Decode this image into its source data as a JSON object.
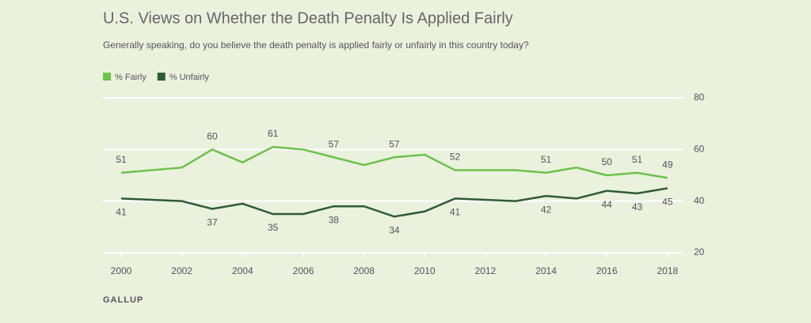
{
  "chart_data": {
    "type": "line",
    "title": "U.S. Views on Whether the Death Penalty Is Applied Fairly",
    "subtitle": "Generally speaking, do you believe the death penalty is applied fairly or unfairly in this country today?",
    "source": "GALLUP",
    "x": [
      2000,
      2002,
      2003,
      2004,
      2005,
      2006,
      2007,
      2008,
      2009,
      2010,
      2011,
      2013,
      2014,
      2015,
      2016,
      2017,
      2018
    ],
    "series": [
      {
        "name": "% Fairly",
        "color": "#6cc24a",
        "values": [
          51,
          53,
          60,
          55,
          61,
          60,
          57,
          54,
          57,
          58,
          52,
          52,
          51,
          53,
          50,
          51,
          49
        ],
        "value_labels": [
          "51",
          null,
          "60",
          null,
          "61",
          null,
          "57",
          null,
          "57",
          null,
          "52",
          null,
          "51",
          null,
          "50",
          "51",
          "49"
        ]
      },
      {
        "name": "% Unfairly",
        "color": "#2e5b36",
        "values": [
          41,
          40,
          37,
          39,
          35,
          35,
          38,
          38,
          34,
          36,
          41,
          40,
          42,
          41,
          44,
          43,
          45
        ],
        "value_labels": [
          "41",
          null,
          "37",
          null,
          "35",
          null,
          "38",
          null,
          "34",
          null,
          "41",
          null,
          "42",
          null,
          "44",
          "43",
          "45"
        ]
      }
    ],
    "xlim": [
      1999.4,
      2018.5
    ],
    "xticks": [
      2000,
      2002,
      2004,
      2006,
      2008,
      2010,
      2012,
      2014,
      2016,
      2018
    ],
    "ylim": [
      20,
      80
    ],
    "yticks": [
      20,
      40,
      60,
      80
    ],
    "grid": true
  }
}
